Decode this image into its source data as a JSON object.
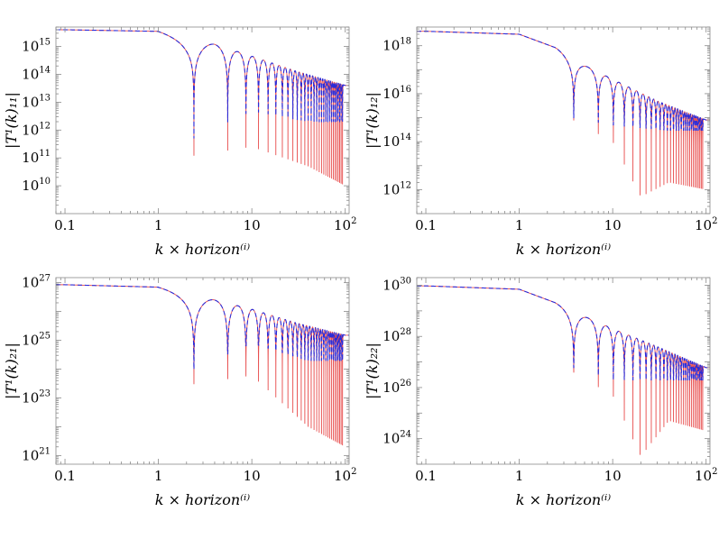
{
  "chart_data": [
    {
      "type": "line",
      "id": "T11",
      "ylabel": "|T¹(k)₁₁|",
      "xlabel": "k × horizon⁽ⁱ⁾",
      "xscale": "log",
      "yscale": "log",
      "xlim": [
        0.08,
        110
      ],
      "ylim": [
        1000000000.0,
        5000000000000000.0
      ],
      "xticks": [
        {
          "v": 0.1,
          "label": "0.1"
        },
        {
          "v": 1,
          "label": "1"
        },
        {
          "v": 10,
          "label": "10"
        },
        {
          "v": 100,
          "label": "10",
          "sup": "2"
        }
      ],
      "yticks": [
        {
          "v": 10000000000.0,
          "label": "10",
          "sup": "10"
        },
        {
          "v": 100000000000.0,
          "label": "10",
          "sup": "11"
        },
        {
          "v": 1000000000000.0,
          "label": "10",
          "sup": "12"
        },
        {
          "v": 10000000000000.0,
          "label": "10",
          "sup": "13"
        },
        {
          "v": 100000000000000.0,
          "label": "10",
          "sup": "14"
        },
        {
          "v": 1000000000000000.0,
          "label": "10",
          "sup": "15"
        }
      ],
      "plateau": 4000000000000000.0,
      "zeros": [
        2.4,
        5.52,
        8.65,
        11.79,
        14.93,
        18.07,
        21.21,
        24.35,
        27.49,
        30.63,
        33.77,
        36.91,
        40.05,
        43.19,
        46.33,
        49.47,
        52.61,
        55.75,
        58.89,
        62.03,
        65.17,
        68.31,
        71.45,
        74.59,
        77.73,
        80.87,
        84.01,
        87.15,
        90.29,
        93.43
      ],
      "envelope": [
        [
          0.1,
          4000000000000000.0
        ],
        [
          1,
          3500000000000000.0
        ],
        [
          2.0,
          1700000000000000.0
        ],
        [
          4.0,
          1200000000000000.0
        ],
        [
          10,
          450000000000000.0
        ],
        [
          30,
          130000000000000.0
        ],
        [
          100,
          40000000000000.0
        ]
      ],
      "series": [
        {
          "color": "#e84d4d",
          "style": "solid",
          "dip_floor": [
            [
              2.4,
              120000000000.0
            ],
            [
              10,
              250000000000.0
            ],
            [
              40,
              50000000000.0
            ],
            [
              100,
              10000000000.0
            ]
          ]
        },
        {
          "color": "#2b2bd8",
          "style": "dashed",
          "dip_floor": [
            [
              2.4,
              500000000000.0
            ],
            [
              10,
              5000000000000.0
            ],
            [
              40,
              2000000000000.0
            ],
            [
              100,
              2000000000000.0
            ]
          ]
        }
      ]
    },
    {
      "type": "line",
      "id": "T12",
      "ylabel": "|T¹(k)₁₂|",
      "xlabel": "k × horizon⁽ⁱ⁾",
      "xscale": "log",
      "yscale": "log",
      "xlim": [
        0.08,
        110
      ],
      "ylim": [
        100000000000.0,
        6e+18
      ],
      "xticks": [
        {
          "v": 0.1,
          "label": "0.1"
        },
        {
          "v": 1,
          "label": "1"
        },
        {
          "v": 10,
          "label": "10"
        },
        {
          "v": 100,
          "label": "10",
          "sup": "2"
        }
      ],
      "yticks": [
        {
          "v": 1000000000000.0,
          "label": "10",
          "sup": "12"
        },
        {
          "v": 100000000000000.0,
          "label": "10",
          "sup": "14"
        },
        {
          "v": 1e+16,
          "label": "10",
          "sup": "16"
        },
        {
          "v": 1e+18,
          "label": "10",
          "sup": "18"
        }
      ],
      "plateau": 4e+18,
      "zeros": [
        3.83,
        7.02,
        10.17,
        13.32,
        16.47,
        19.62,
        22.76,
        25.9,
        29.05,
        32.19,
        35.33,
        38.47,
        41.62,
        44.76,
        47.9,
        51.04,
        54.18,
        57.32,
        60.47,
        63.61,
        66.75,
        69.89,
        73.03,
        76.17,
        79.31,
        82.45,
        85.6,
        88.74,
        91.88
      ],
      "envelope": [
        [
          0.1,
          4e+18
        ],
        [
          1,
          3e+18
        ],
        [
          2.5,
          8e+17
        ],
        [
          5,
          1.5e+17
        ],
        [
          10,
          4e+16
        ],
        [
          30,
          5000000000000000.0
        ],
        [
          100,
          800000000000000.0
        ]
      ],
      "series": [
        {
          "color": "#e84d4d",
          "style": "solid",
          "dip_floor": [
            [
              3.83,
              800000000000000.0
            ],
            [
              10,
              100000000000000.0
            ],
            [
              20,
              500000000000.0
            ],
            [
              40,
              2000000000000.0
            ],
            [
              100,
              1000000000000.0
            ]
          ]
        },
        {
          "color": "#2b2bd8",
          "style": "dashed",
          "dip_floor": [
            [
              3.83,
              1000000000000000.0
            ],
            [
              10,
              500000000000000.0
            ],
            [
              40,
              300000000000000.0
            ],
            [
              100,
              300000000000000.0
            ]
          ]
        }
      ]
    },
    {
      "type": "line",
      "id": "T21",
      "ylabel": "|T¹(k)₂₁|",
      "xlabel": "k × horizon⁽ⁱ⁾",
      "xscale": "log",
      "yscale": "log",
      "xlim": [
        0.08,
        110
      ],
      "ylim": [
        5e+20,
        1.5e+27
      ],
      "xticks": [
        {
          "v": 0.1,
          "label": "0.1"
        },
        {
          "v": 1,
          "label": "1"
        },
        {
          "v": 10,
          "label": "10"
        },
        {
          "v": 100,
          "label": "10",
          "sup": "2"
        }
      ],
      "yticks": [
        {
          "v": 1e+21,
          "label": "10",
          "sup": "21"
        },
        {
          "v": 1e+23,
          "label": "10",
          "sup": "23"
        },
        {
          "v": 1e+25,
          "label": "10",
          "sup": "25"
        },
        {
          "v": 1e+27,
          "label": "10",
          "sup": "27"
        }
      ],
      "plateau": 8.5e+26,
      "zeros": [
        2.4,
        5.52,
        8.65,
        11.79,
        14.93,
        18.07,
        21.21,
        24.35,
        27.49,
        30.63,
        33.77,
        36.91,
        40.05,
        43.19,
        46.33,
        49.47,
        52.61,
        55.75,
        58.89,
        62.03,
        65.17,
        68.31,
        71.45,
        74.59,
        77.73,
        80.87,
        84.01,
        87.15,
        90.29,
        93.43
      ],
      "envelope": [
        [
          0.1,
          8.5e+26
        ],
        [
          1,
          7e+26
        ],
        [
          2.0,
          4e+26
        ],
        [
          4.0,
          2.5e+26
        ],
        [
          10,
          1.2e+26
        ],
        [
          30,
          4e+25
        ],
        [
          100,
          1.5e+25
        ]
      ],
      "series": [
        {
          "color": "#e84d4d",
          "style": "solid",
          "dip_floor": [
            [
              2.4,
              3e+23
            ],
            [
              10,
              6e+23
            ],
            [
              40,
              1e+22
            ],
            [
              100,
              2e+21
            ]
          ]
        },
        {
          "color": "#2b2bd8",
          "style": "dashed",
          "dip_floor": [
            [
              2.4,
              1e+24
            ],
            [
              10,
              8e+24
            ],
            [
              40,
              2e+24
            ],
            [
              100,
              2e+24
            ]
          ]
        }
      ]
    },
    {
      "type": "line",
      "id": "T22",
      "ylabel": "|T¹(k)₂₂|",
      "xlabel": "k × horizon⁽ⁱ⁾",
      "xscale": "log",
      "yscale": "log",
      "xlim": [
        0.08,
        110
      ],
      "ylim": [
        1e+23,
        2e+30
      ],
      "xticks": [
        {
          "v": 0.1,
          "label": "0.1"
        },
        {
          "v": 1,
          "label": "1"
        },
        {
          "v": 10,
          "label": "10"
        },
        {
          "v": 100,
          "label": "10",
          "sup": "2"
        }
      ],
      "yticks": [
        {
          "v": 1e+24,
          "label": "10",
          "sup": "24"
        },
        {
          "v": 1e+26,
          "label": "10",
          "sup": "26"
        },
        {
          "v": 1e+28,
          "label": "10",
          "sup": "28"
        },
        {
          "v": 1e+30,
          "label": "10",
          "sup": "30"
        }
      ],
      "plateau": 9.5e+29,
      "zeros": [
        3.83,
        7.02,
        10.17,
        13.32,
        16.47,
        19.62,
        22.76,
        25.9,
        29.05,
        32.19,
        35.33,
        38.47,
        41.62,
        44.76,
        47.9,
        51.04,
        54.18,
        57.32,
        60.47,
        63.61,
        66.75,
        69.89,
        73.03,
        76.17,
        79.31,
        82.45,
        85.6,
        88.74,
        91.88
      ],
      "envelope": [
        [
          0.1,
          9.5e+29
        ],
        [
          1,
          7e+29
        ],
        [
          2.5,
          2e+29
        ],
        [
          5,
          6e+28
        ],
        [
          10,
          2e+28
        ],
        [
          30,
          4e+27
        ],
        [
          100,
          6e+26
        ]
      ],
      "series": [
        {
          "color": "#e84d4d",
          "style": "solid",
          "dip_floor": [
            [
              3.83,
              4e+26
            ],
            [
              10,
              5e+25
            ],
            [
              20,
              2e+23
            ],
            [
              40,
              5e+24
            ],
            [
              100,
              2e+24
            ]
          ]
        },
        {
          "color": "#2b2bd8",
          "style": "dashed",
          "dip_floor": [
            [
              3.83,
              6e+26
            ],
            [
              10,
              2e+26
            ],
            [
              40,
              2e+26
            ],
            [
              100,
              2e+26
            ]
          ]
        }
      ]
    }
  ]
}
